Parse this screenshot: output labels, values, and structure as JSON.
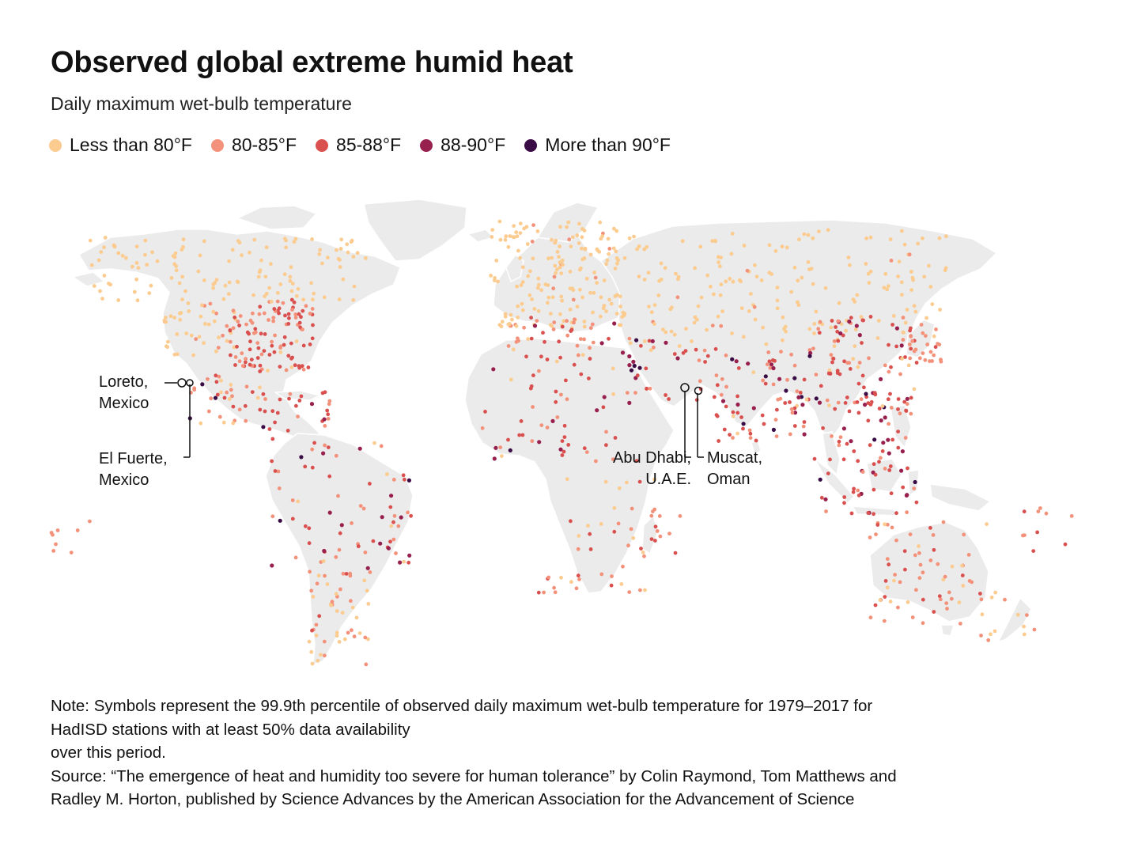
{
  "title": "Observed global extreme humid heat",
  "subtitle": "Daily maximum wet-bulb temperature",
  "legend": [
    {
      "label": "Less than 80°F",
      "color": "#fbcb8f",
      "key": "lt80"
    },
    {
      "label": "80-85°F",
      "color": "#f4917a",
      "key": "c80_85"
    },
    {
      "label": "85-88°F",
      "color": "#d9504f",
      "key": "c85_88"
    },
    {
      "label": "88-90°F",
      "color": "#98204e",
      "key": "c88_90"
    },
    {
      "label": "More than 90°F",
      "color": "#3a0c45",
      "key": "gt90"
    }
  ],
  "map": {
    "land_color": "#ebebeb",
    "border_color": "#c9c9c9"
  },
  "callouts": {
    "loreto": {
      "line1": "Loreto,",
      "line2": "Mexico"
    },
    "el_fuerte": {
      "line1": "El Fuerte,",
      "line2": "Mexico"
    },
    "abu_dhabi": {
      "line1": "Abu Dhabi,",
      "line2": "U.A.E."
    },
    "muscat": {
      "line1": "Muscat,",
      "line2": "Oman"
    }
  },
  "notes": {
    "note": "Note: Symbols represent the 99.9th percentile of observed daily maximum wet-bulb temperature for 1979–2017 for\nHadISD stations with at least 50% data availability\nover this period.",
    "source": "Source: “The emergence of heat and humidity too severe for human tolerance” by Colin Raymond, Tom Matthews and\nRadley M. Horton, published by Science Advances by the American Association for the Advancement of Science"
  }
}
